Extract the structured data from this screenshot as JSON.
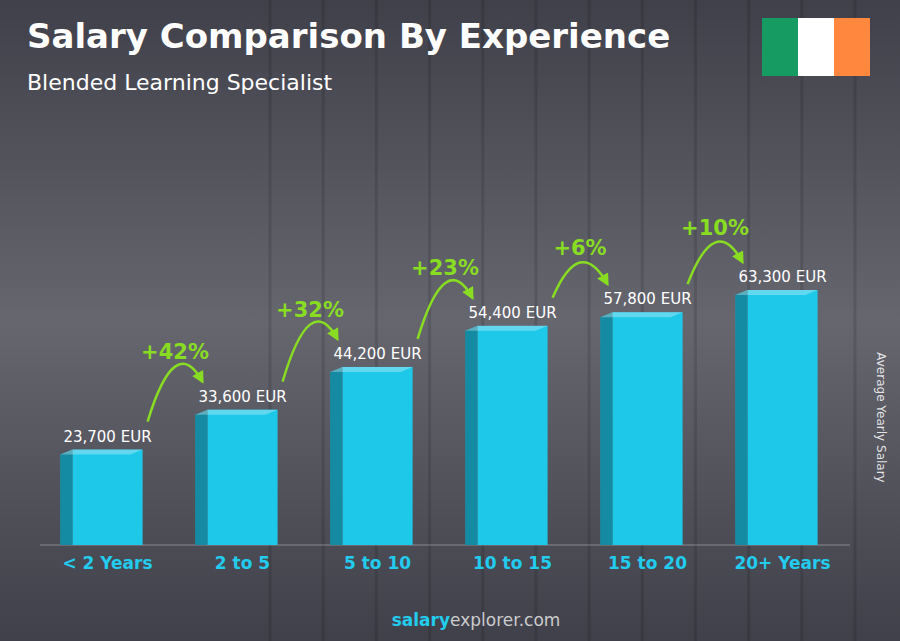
{
  "chart_data": {
    "type": "bar",
    "title": "Salary Comparison By Experience",
    "subtitle": "Blended Learning Specialist",
    "y_label": "Average Yearly Salary",
    "categories": [
      "< 2 Years",
      "2 to 5",
      "5 to 10",
      "10 to 15",
      "15 to 20",
      "20+ Years"
    ],
    "values": [
      23700,
      33600,
      44200,
      54400,
      57800,
      63300
    ],
    "value_labels": [
      "23,700 EUR",
      "33,600 EUR",
      "44,200 EUR",
      "54,400 EUR",
      "57,800 EUR",
      "63,300 EUR"
    ],
    "data_labels": true,
    "color": "#1ec8e8",
    "ylim": [
      0,
      63300
    ],
    "tick_labels": "x",
    "grid": false,
    "annotations": [
      {
        "text": "+42%",
        "from": "< 2 Years",
        "to": "2 to 5"
      },
      {
        "text": "+32%",
        "from": "2 to 5",
        "to": "5 to 10"
      },
      {
        "text": "+23%",
        "from": "5 to 10",
        "to": "10 to 15"
      },
      {
        "text": "+6%",
        "from": "10 to 15",
        "to": "15 to 20"
      },
      {
        "text": "+10%",
        "from": "15 to 20",
        "to": "20+ Years"
      }
    ],
    "footer": [
      "salary",
      "explorer.com"
    ]
  }
}
